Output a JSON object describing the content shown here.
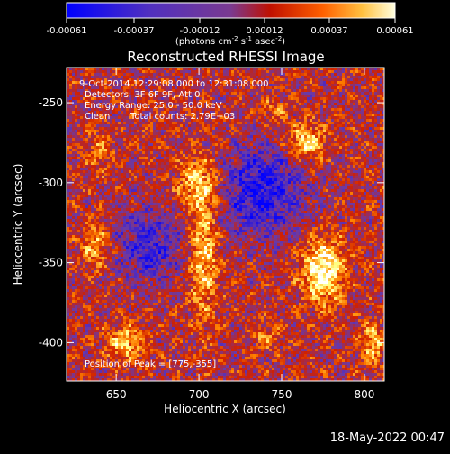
{
  "colorbar": {
    "tick_labels": [
      "-0.00061",
      "-0.00037",
      "-0.00012",
      "0.00012",
      "0.00037",
      "0.00061"
    ],
    "units_prefix": "(photons cm",
    "units_exp1": "-2",
    "units_mid": " s",
    "units_exp2": "-1",
    "units_mid2": " asec",
    "units_exp3": "-2",
    "units_suffix": ")"
  },
  "chart_data": {
    "type": "heatmap",
    "title": "Reconstructed RHESSI Image",
    "xlabel": "Heliocentric X (arcsec)",
    "ylabel": "Heliocentric Y (arcsec)",
    "xlim": [
      620,
      812
    ],
    "ylim": [
      -424,
      -228
    ],
    "xticks": [
      650,
      700,
      750,
      800
    ],
    "yticks": [
      -250,
      -300,
      -350,
      -400
    ],
    "color_range": [
      -0.00061,
      0.00061
    ],
    "colormap": [
      "#0000ff",
      "#6a3aa8",
      "#d02000",
      "#ff8000",
      "#ffff80",
      "#ffffff"
    ],
    "peak": [
      775,
      -355
    ],
    "sources": [
      {
        "x": 775,
        "y": -355,
        "amp": 0.00061,
        "sx": 9,
        "sy": 14
      },
      {
        "x": 765,
        "y": -275,
        "amp": 0.0005,
        "sx": 8,
        "sy": 8
      },
      {
        "x": 703,
        "y": -345,
        "amp": 0.00045,
        "sx": 6,
        "sy": 28
      },
      {
        "x": 700,
        "y": -300,
        "amp": 0.00038,
        "sx": 9,
        "sy": 12
      },
      {
        "x": 655,
        "y": -400,
        "amp": 0.0004,
        "sx": 8,
        "sy": 8
      },
      {
        "x": 638,
        "y": -340,
        "amp": 0.00035,
        "sx": 6,
        "sy": 10
      },
      {
        "x": 640,
        "y": -280,
        "amp": 0.00025,
        "sx": 6,
        "sy": 8
      },
      {
        "x": 805,
        "y": -400,
        "amp": 0.0004,
        "sx": 5,
        "sy": 9
      },
      {
        "x": 745,
        "y": -255,
        "amp": 0.00025,
        "sx": 6,
        "sy": 5
      },
      {
        "x": 740,
        "y": -395,
        "amp": 0.00022,
        "sx": 6,
        "sy": 6
      }
    ],
    "negative_regions": [
      {
        "x": 738,
        "y": -305,
        "amp": -0.0005,
        "sx": 18,
        "sy": 20
      },
      {
        "x": 670,
        "y": -340,
        "amp": -0.0004,
        "sx": 14,
        "sy": 16
      }
    ],
    "annotations": {
      "time": "9-Oct-2014 12:29:08.000 to 12:31:08.000",
      "detectors": "Detectors: 3F 6F 9F, Att 0",
      "energy": "Energy Range: 25.0 - 50.0 keV",
      "method": "Clean",
      "counts": "Total counts: 2.79E+03",
      "peak_label": "Position of Peak = [775,-355]"
    }
  },
  "footer": {
    "date": "18-May-2022 00:47"
  }
}
